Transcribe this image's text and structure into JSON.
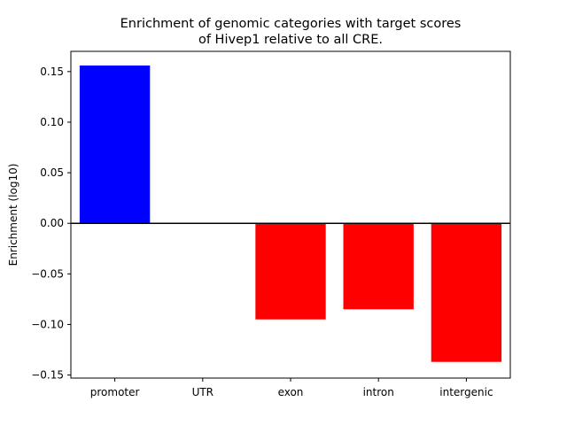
{
  "chart_data": {
    "type": "bar",
    "title": [
      "Enrichment of genomic categories with target scores",
      "of Hivep1 relative to all CRE."
    ],
    "xlabel": "",
    "ylabel": "Enrichment (log10)",
    "categories": [
      "promoter",
      "UTR",
      "exon",
      "intron",
      "intergenic"
    ],
    "values": [
      0.156,
      0.0,
      -0.095,
      -0.085,
      -0.137
    ],
    "ylim": [
      -0.153,
      0.17
    ],
    "yticks": [
      0.15,
      0.1,
      0.05,
      0.0,
      -0.05,
      -0.1,
      -0.15
    ],
    "ytick_labels": [
      "0.15",
      "0.10",
      "0.05",
      "0.00",
      "−0.05",
      "−0.10",
      "−0.15"
    ],
    "positive_color": "#0000ff",
    "negative_color": "#ff0000",
    "zero_line": true,
    "grid": false,
    "legend": "none"
  }
}
